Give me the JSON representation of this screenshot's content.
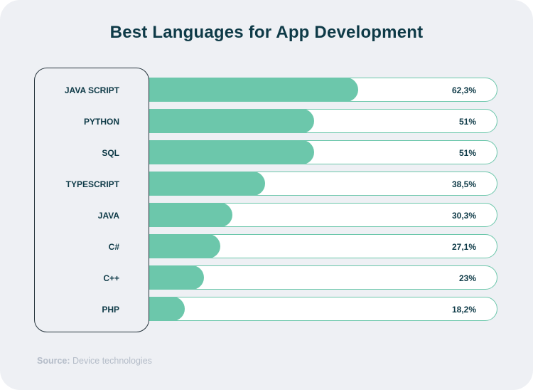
{
  "chart_data": {
    "type": "bar",
    "orientation": "horizontal",
    "title": "Best Languages for App Development",
    "categories": [
      "JAVA SCRIPT",
      "PYTHON",
      "SQL",
      "TYPESCRIPT",
      "JAVA",
      "C#",
      "C++",
      "PHP"
    ],
    "values": [
      62.3,
      51,
      51,
      38.5,
      30.3,
      27.1,
      23,
      18.2
    ],
    "value_labels": [
      "62,3%",
      "51%",
      "51%",
      "38,5%",
      "30,3%",
      "27,1%",
      "23%",
      "18,2%"
    ],
    "xlim": [
      0,
      100
    ],
    "bar_color": "#6cc7ab",
    "track_color": "#ffffff",
    "grid": false,
    "legend": "none"
  },
  "source": {
    "label": "Source:",
    "text": "Device technologies"
  },
  "colors": {
    "background": "#eef0f4",
    "text": "#0e3a47",
    "accent": "#6cc7ab",
    "muted": "#b4bcc8"
  }
}
